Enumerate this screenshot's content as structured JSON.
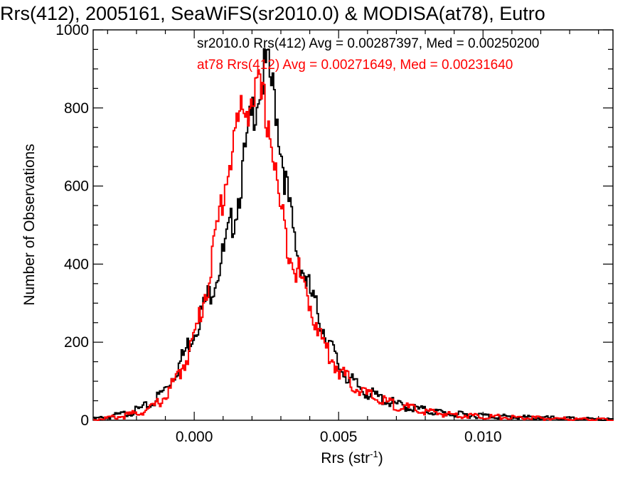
{
  "chart_data": {
    "type": "line",
    "title": "Rrs(412), 2005161, SeaWiFS(sr2010.0) & MODISA(at78), Eutro",
    "xlabel_main": "Rrs (str",
    "xlabel_sup": "-1",
    "xlabel_tail": ")",
    "ylabel": "Number of Observations",
    "xlim": [
      -0.0035,
      0.0145
    ],
    "ylim": [
      0,
      1000
    ],
    "x_tick_values": [
      0.0,
      0.005,
      0.01
    ],
    "x_tick_labels": [
      "0.000",
      "0.005",
      "0.010"
    ],
    "y_tick_values": [
      0,
      200,
      400,
      600,
      800,
      1000
    ],
    "y_tick_labels": [
      "0",
      "200",
      "400",
      "600",
      "800",
      "1000"
    ],
    "grid": false,
    "legend_position": "top-right",
    "series": [
      {
        "name": "sr2010.0 Rrs(412) Avg = 0.00287397, Med = 0.00250200",
        "color": "#000000",
        "x": [
          -0.0035,
          -0.003,
          -0.0025,
          -0.002,
          -0.0015,
          -0.001,
          -0.0005,
          0.0,
          0.0005,
          0.001,
          0.0015,
          0.002,
          0.0022,
          0.0024,
          0.0025,
          0.0026,
          0.0028,
          0.003,
          0.0033,
          0.0035,
          0.004,
          0.0045,
          0.005,
          0.0055,
          0.006,
          0.0065,
          0.007,
          0.008,
          0.009,
          0.01,
          0.011,
          0.012,
          0.013,
          0.0145
        ],
        "y": [
          3,
          8,
          15,
          25,
          40,
          80,
          145,
          230,
          320,
          420,
          560,
          780,
          840,
          880,
          905,
          880,
          820,
          700,
          540,
          450,
          330,
          230,
          140,
          95,
          70,
          55,
          40,
          25,
          15,
          12,
          8,
          6,
          4,
          2
        ]
      },
      {
        "name": "at78 Rrs(412) Avg = 0.00271649, Med = 0.00231640",
        "color": "#ff0000",
        "x": [
          -0.0035,
          -0.003,
          -0.0025,
          -0.002,
          -0.0015,
          -0.001,
          -0.0005,
          0.0,
          0.0005,
          0.001,
          0.0015,
          0.002,
          0.0022,
          0.0024,
          0.0026,
          0.0028,
          0.003,
          0.0033,
          0.0035,
          0.004,
          0.0045,
          0.005,
          0.0055,
          0.006,
          0.0065,
          0.007,
          0.008,
          0.009,
          0.01,
          0.011,
          0.012,
          0.013,
          0.0145
        ],
        "y": [
          2,
          6,
          10,
          18,
          30,
          60,
          120,
          210,
          360,
          580,
          760,
          830,
          840,
          810,
          760,
          640,
          530,
          440,
          400,
          300,
          190,
          130,
          90,
          65,
          50,
          38,
          22,
          14,
          10,
          7,
          5,
          3,
          2
        ]
      }
    ]
  }
}
